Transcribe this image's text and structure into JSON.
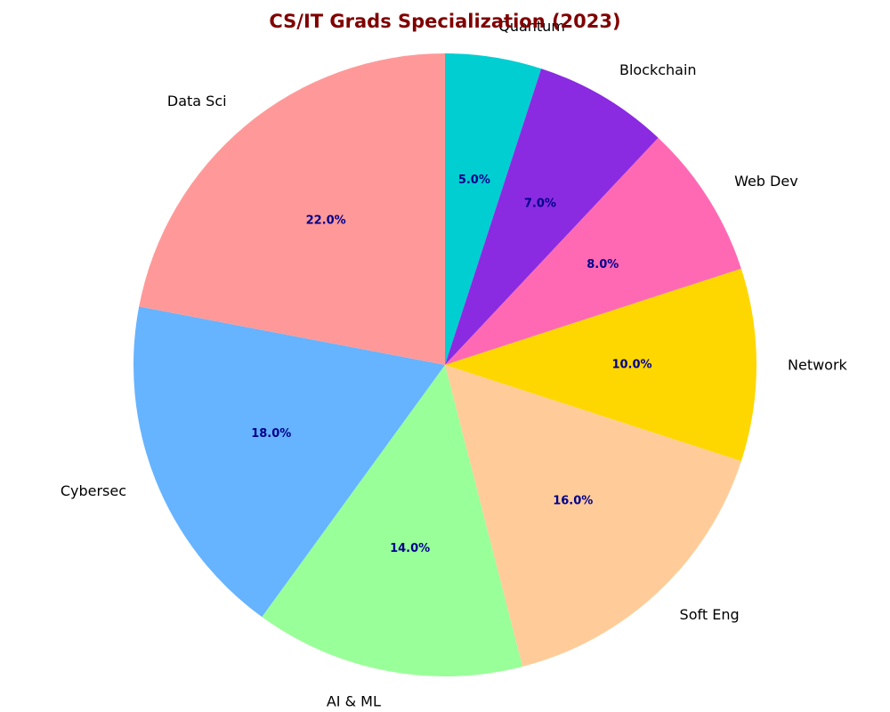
{
  "chart_data": {
    "type": "pie",
    "title": "CS/IT Grads Specialization (2023)",
    "start_angle_deg": 90,
    "direction": "clockwise",
    "slices": [
      {
        "label": "Quantum",
        "value": 5.0,
        "pct_label": "5.0%",
        "color": "#00CED1"
      },
      {
        "label": "Blockchain",
        "value": 7.0,
        "pct_label": "7.0%",
        "color": "#8A2BE2"
      },
      {
        "label": "Web Dev",
        "value": 8.0,
        "pct_label": "8.0%",
        "color": "#FF69B4"
      },
      {
        "label": "Network",
        "value": 10.0,
        "pct_label": "10.0%",
        "color": "#FFD700"
      },
      {
        "label": "Soft Eng",
        "value": 16.0,
        "pct_label": "16.0%",
        "color": "#FFCC99"
      },
      {
        "label": "AI & ML",
        "value": 14.0,
        "pct_label": "14.0%",
        "color": "#99FF99"
      },
      {
        "label": "Cybersec",
        "value": 18.0,
        "pct_label": "18.0%",
        "color": "#66B3FF"
      },
      {
        "label": "Data Sci",
        "value": 22.0,
        "pct_label": "22.0%",
        "color": "#FF9999"
      }
    ]
  },
  "colors": {
    "title": "#800000",
    "pct_label": "#00008B",
    "label": "#000000"
  }
}
